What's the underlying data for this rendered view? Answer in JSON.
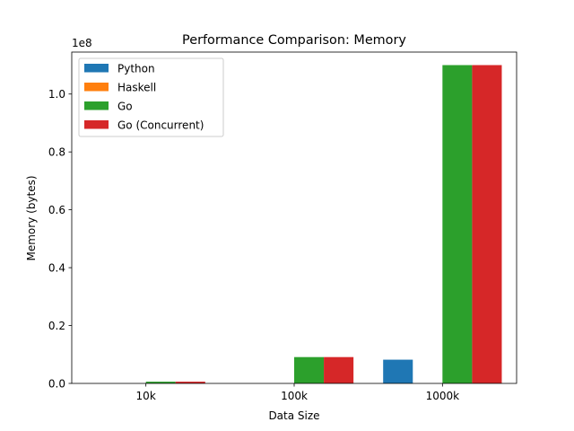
{
  "chart_data": {
    "type": "bar",
    "title": "Performance Comparison: Memory",
    "xlabel": "Data Size",
    "ylabel": "Memory (bytes)",
    "y_offset_label": "1e8",
    "categories": [
      "10k",
      "100k",
      "1000k"
    ],
    "ylim": [
      0,
      114500000
    ],
    "yticks": [
      0,
      20000000,
      40000000,
      60000000,
      80000000,
      100000000
    ],
    "ytick_labels": [
      "0.0",
      "0.2",
      "0.4",
      "0.6",
      "0.8",
      "1.0"
    ],
    "grid": false,
    "legend_position": "top-left",
    "series": [
      {
        "name": "Python",
        "color": "#1f77b4",
        "values": [
          0,
          0,
          8200000
        ]
      },
      {
        "name": "Haskell",
        "color": "#ff7f0e",
        "values": [
          0,
          0,
          0
        ]
      },
      {
        "name": "Go",
        "color": "#2ca02c",
        "values": [
          600000,
          9100000,
          110000000
        ]
      },
      {
        "name": "Go (Concurrent)",
        "color": "#d62728",
        "values": [
          600000,
          9100000,
          110000000
        ]
      }
    ]
  }
}
